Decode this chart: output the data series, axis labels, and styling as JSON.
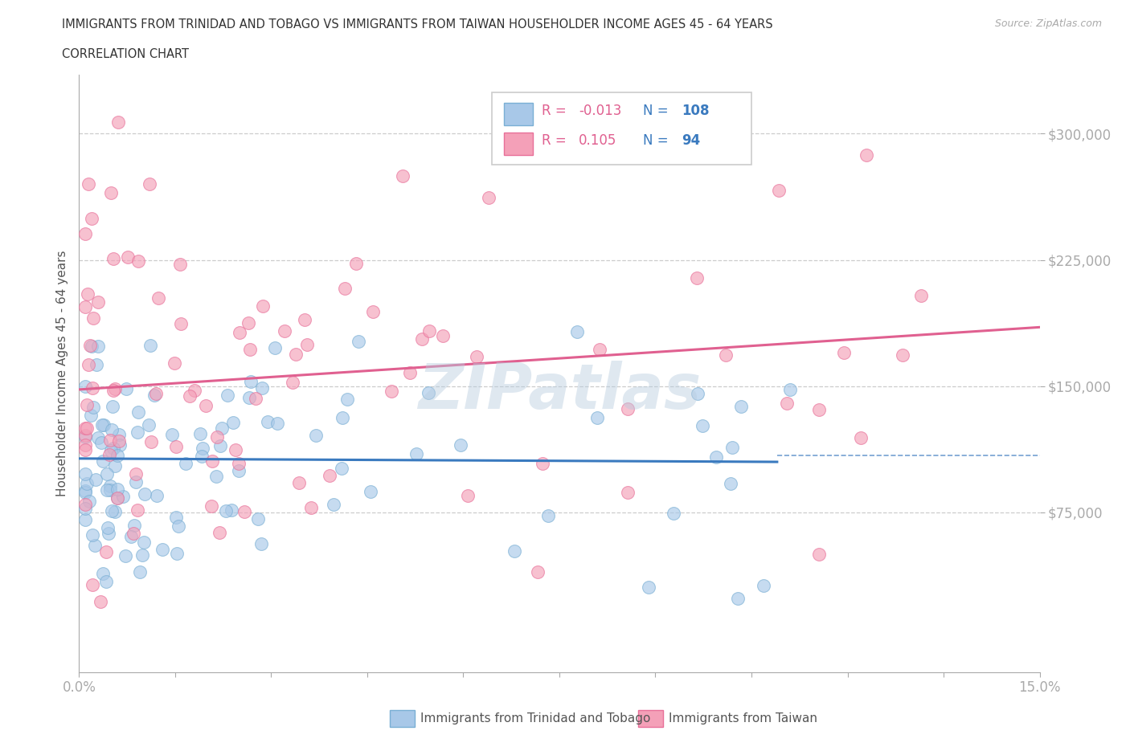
{
  "title_line1": "IMMIGRANTS FROM TRINIDAD AND TOBAGO VS IMMIGRANTS FROM TAIWAN HOUSEHOLDER INCOME AGES 45 - 64 YEARS",
  "title_line2": "CORRELATION CHART",
  "source_text": "Source: ZipAtlas.com",
  "ylabel": "Householder Income Ages 45 - 64 years",
  "xlim": [
    0.0,
    0.15
  ],
  "ylim": [
    -20000,
    335000
  ],
  "xticks": [
    0.0,
    0.015,
    0.03,
    0.045,
    0.06,
    0.075,
    0.09,
    0.105,
    0.12,
    0.135,
    0.15
  ],
  "ytick_positions": [
    75000,
    150000,
    225000,
    300000
  ],
  "ytick_labels": [
    "$75,000",
    "$150,000",
    "$225,000",
    "$300,000"
  ],
  "color_blue": "#a8c8e8",
  "color_pink": "#f4a0b8",
  "color_blue_edge": "#7aafd4",
  "color_pink_edge": "#e87099",
  "color_blue_line": "#3a7abf",
  "color_pink_line": "#e06090",
  "R_blue": -0.013,
  "N_blue": 108,
  "R_pink": 0.105,
  "N_pink": 94,
  "legend_label_blue": "Immigrants from Trinidad and Tobago",
  "legend_label_pink": "Immigrants from Taiwan",
  "watermark": "ZIPatlas",
  "blue_line_x": [
    0.0,
    0.109
  ],
  "blue_line_y": [
    107000,
    105000
  ],
  "pink_line_x": [
    0.0,
    0.15
  ],
  "pink_line_y": [
    148000,
    185000
  ],
  "dashed_line_y": 109000,
  "dashed_line_xstart": 0.109
}
